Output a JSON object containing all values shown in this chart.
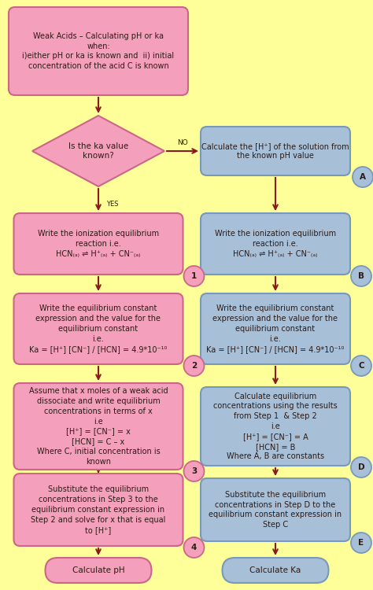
{
  "bg_color": "#FFFF99",
  "pink_box": "#F4A0BC",
  "blue_box": "#A8BFD8",
  "arrow_color": "#8B1A1A",
  "border_pink": "#CC6688",
  "border_blue": "#7799BB",
  "text_dark": "#2B1B17",
  "title_text": "Weak Acids – Calculating pH or ka\nwhen:\ni)either pH or ka is known and  ii) initial\nconcentration of the acid C is known",
  "diamond_text": "Is the ka value\nknown?",
  "no_label": "NO",
  "yes_label": "YES",
  "box_A_text": "Calculate the [H⁺] of the solution from\nthe known pH value",
  "box_1_text": "Write the ionization equilibrium\nreaction i.e.\nHCN₍ₐ₎ ⇌ H⁺₍ₐ₎ + CN⁻₍ₐ₎",
  "box_B_text": "Write the ionization equilibrium\nreaction i.e.\nHCN₍ₐ₎ ⇌ H⁺₍ₐ₎ + CN⁻₍ₐ₎",
  "box_2_text": "Write the equilibrium constant\nexpression and the value for the\nequilibrium constant\ni.e.\nKa = [H⁺] [CN⁻] / [HCN] = 4.9*10⁻¹⁰",
  "box_C_text": "Write the equilibrium constant\nexpression and the value for the\nequilibrium constant\ni.e.\nKa = [H⁺] [CN⁻] / [HCN] = 4.9*10⁻¹⁰",
  "box_3_text": "Assume that x moles of a weak acid\ndissociate and write equilibrium\nconcentrations in terms of x\ni.e\n[H⁺] = [CN⁻] = x\n[HCN] = C – x\nWhere C, initial concentration is\nknown",
  "box_D_text": "Calculate equilibrium\nconcentrations using the results\nfrom Step 1  & Step 2\ni.e\n[H⁺] = [CN⁻] = A\n[HCN] = B\nWhere A, B are constants",
  "box_4_text": "Substitute the equilibrium\nconcentrations in Step 3 to the\nequilibrium constant expression in\nStep 2 and solve for x that is equal\nto [H⁺]",
  "box_E_text": "Substitute the equilibrium\nconcentrations in Step D to the\nequilibrium constant expression in\nStep C",
  "calc_pH_text": "Calculate pH",
  "calc_Ka_text": "Calculate Ka"
}
